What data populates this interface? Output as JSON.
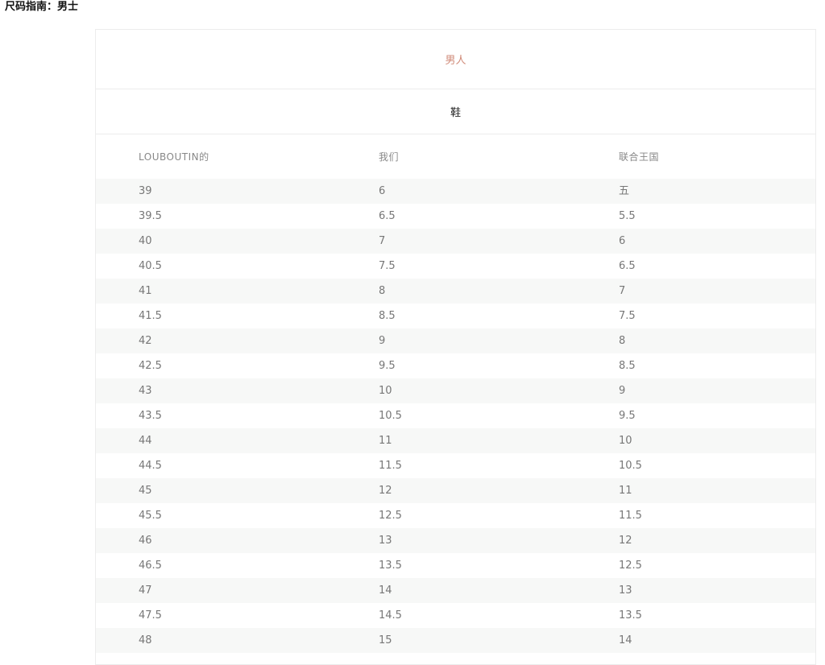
{
  "page": {
    "title": "尺码指南：男士"
  },
  "panel": {
    "gender": "男人",
    "category": "鞋",
    "columns": [
      "LOUBOUTIN的",
      "我们",
      "联合王国"
    ],
    "rows": [
      [
        "39",
        "6",
        "五"
      ],
      [
        "39.5",
        "6.5",
        "5.5"
      ],
      [
        "40",
        "7",
        "6"
      ],
      [
        "40.5",
        "7.5",
        "6.5"
      ],
      [
        "41",
        "8",
        "7"
      ],
      [
        "41.5",
        "8.5",
        "7.5"
      ],
      [
        "42",
        "9",
        "8"
      ],
      [
        "42.5",
        "9.5",
        "8.5"
      ],
      [
        "43",
        "10",
        "9"
      ],
      [
        "43.5",
        "10.5",
        "9.5"
      ],
      [
        "44",
        "11",
        "10"
      ],
      [
        "44.5",
        "11.5",
        "10.5"
      ],
      [
        "45",
        "12",
        "11"
      ],
      [
        "45.5",
        "12.5",
        "11.5"
      ],
      [
        "46",
        "13",
        "12"
      ],
      [
        "46.5",
        "13.5",
        "12.5"
      ],
      [
        "47",
        "14",
        "13"
      ],
      [
        "47.5",
        "14.5",
        "13.5"
      ],
      [
        "48",
        "15",
        "14"
      ]
    ]
  },
  "colors": {
    "gender_accent": "#d08a78",
    "row_shade": "#f7f8f7",
    "border": "#ececec"
  }
}
